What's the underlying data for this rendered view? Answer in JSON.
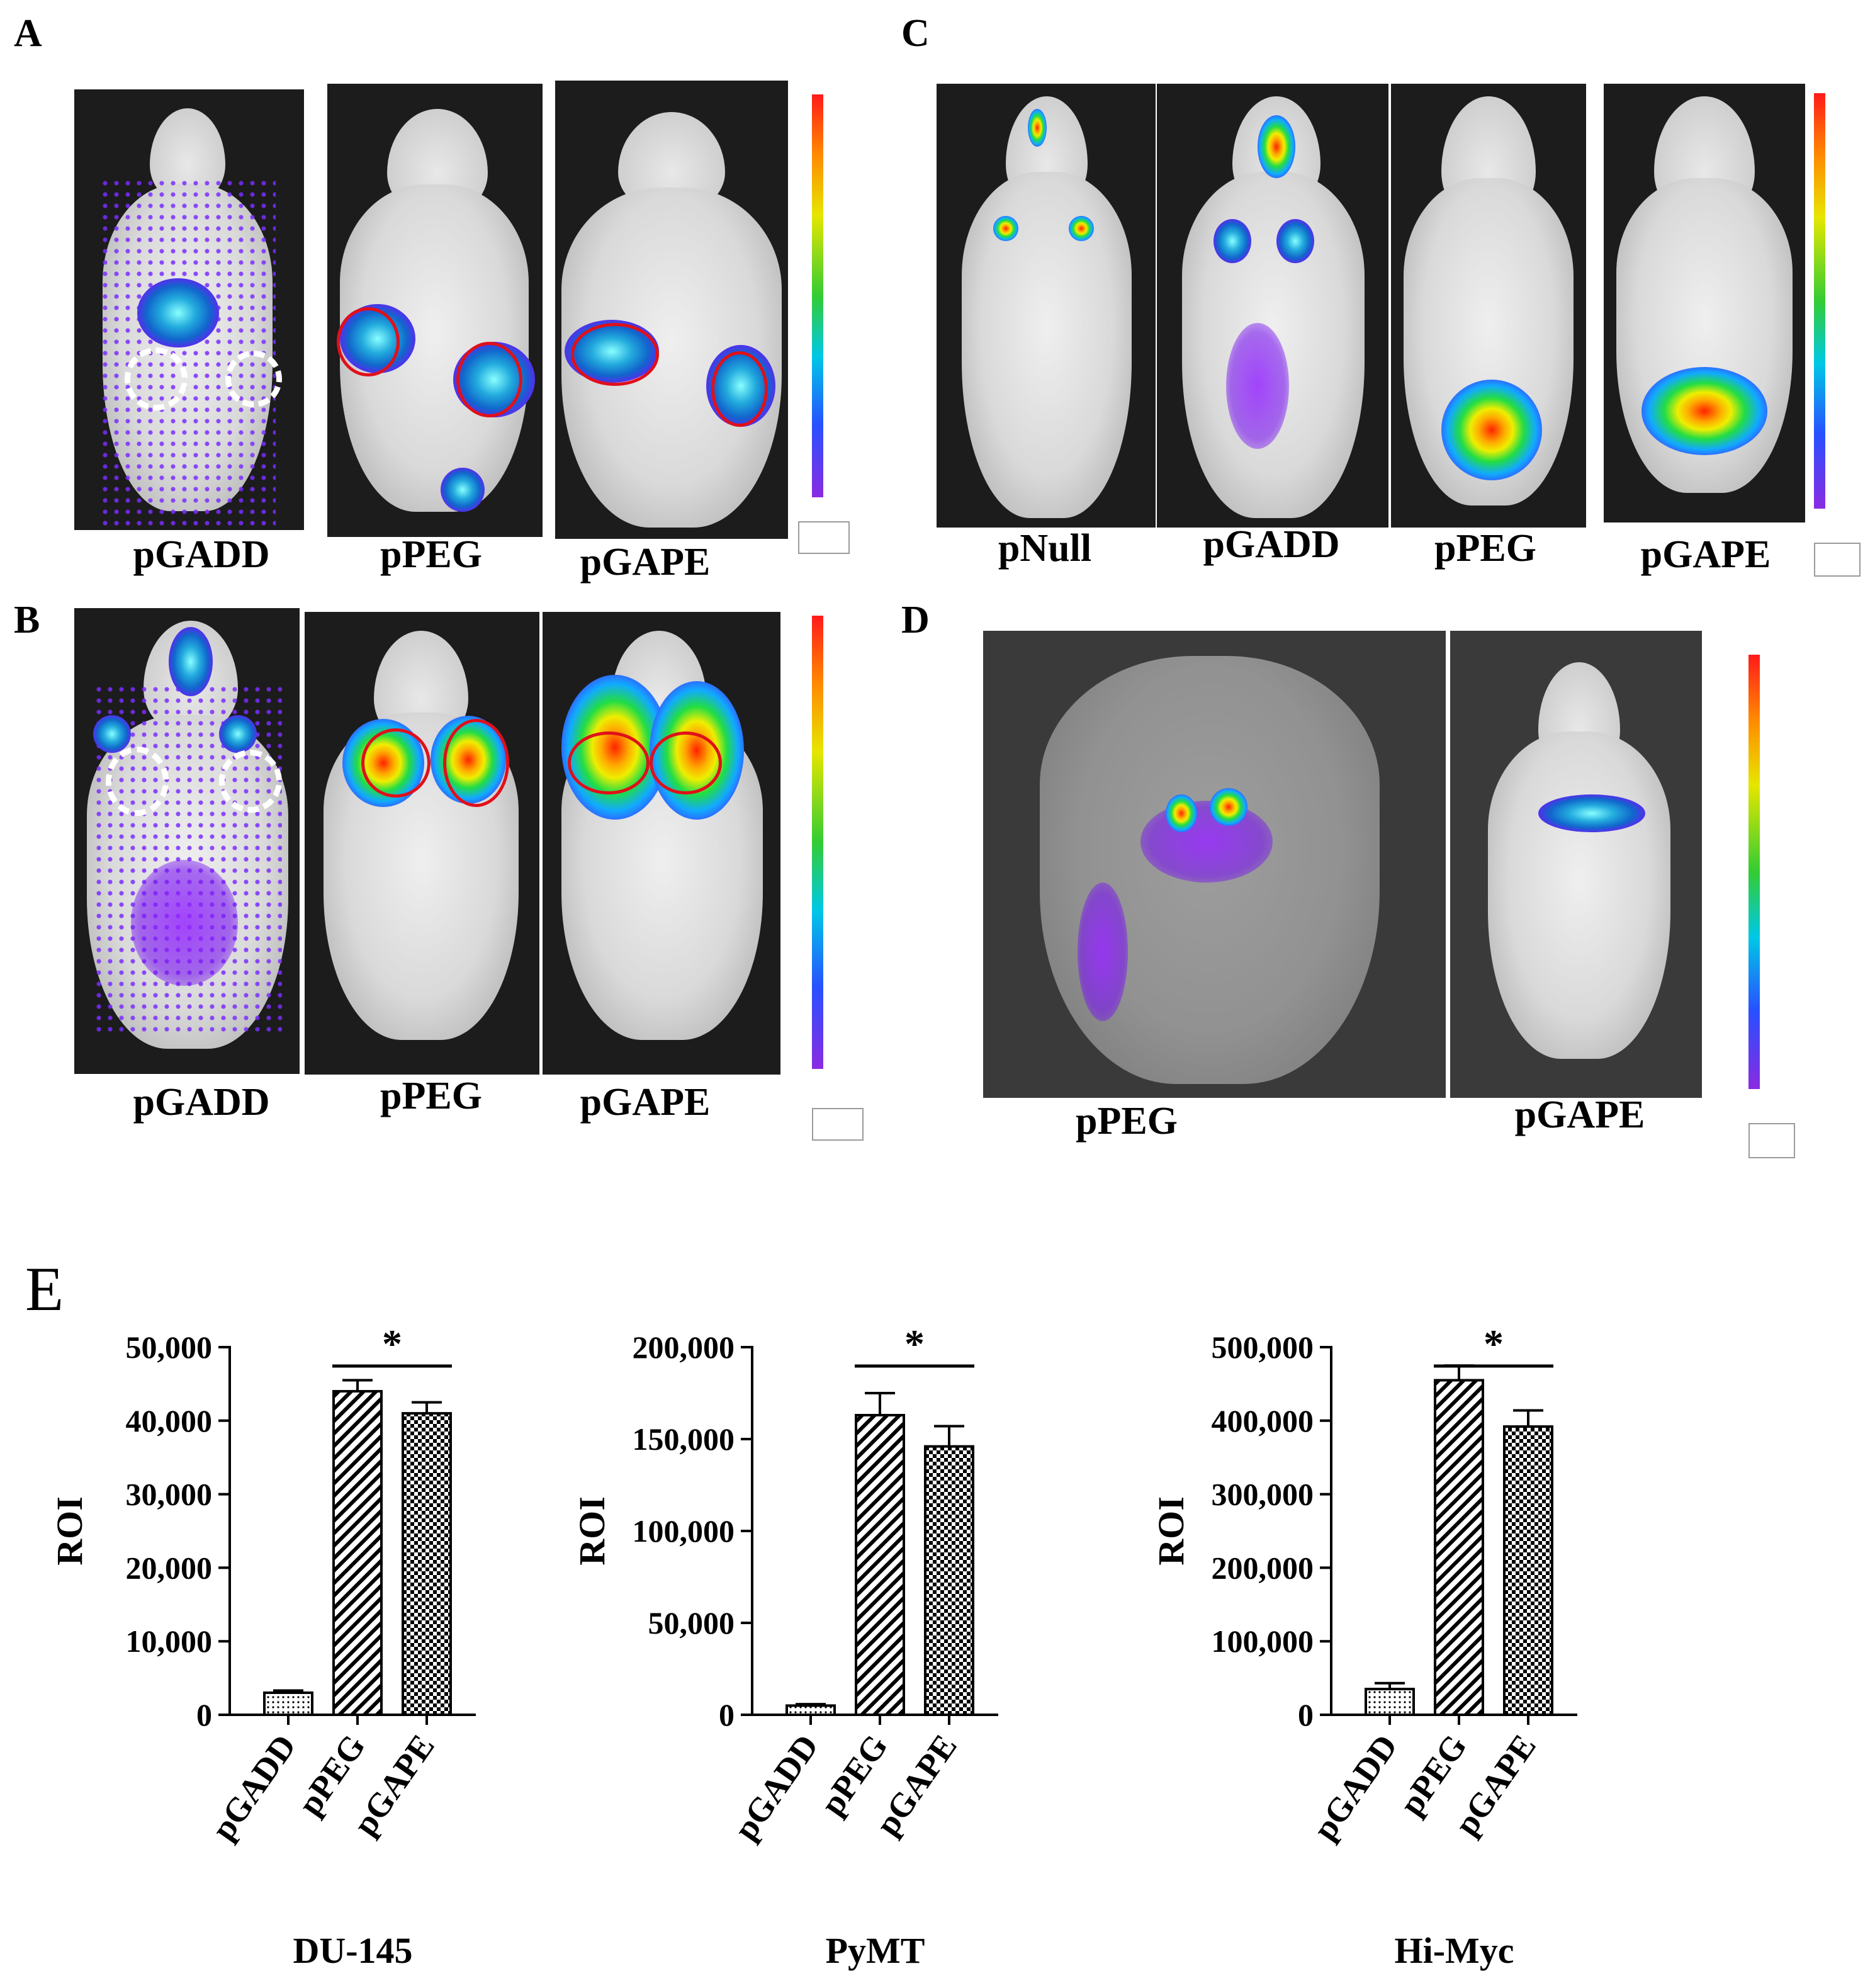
{
  "panels": {
    "A": {
      "letter": "A",
      "captions": [
        "pGADD",
        "pPEG",
        "pGAPE"
      ]
    },
    "B": {
      "letter": "B",
      "captions": [
        "pGADD",
        "pPEG",
        "pGAPE"
      ]
    },
    "C": {
      "letter": "C",
      "captions": [
        "pNull",
        "pGADD",
        "pPEG",
        "pGAPE"
      ]
    },
    "D": {
      "letter": "D",
      "captions": [
        "pPEG",
        "pGAPE"
      ]
    },
    "E": {
      "letter": "E"
    }
  },
  "colors": {
    "bar_fill": "#ffffff",
    "bar_stroke": "#000000"
  },
  "chart_data": [
    {
      "type": "bar",
      "title": "",
      "xlabel": "DU-145",
      "ylabel": "ROI",
      "categories": [
        "pGADD",
        "pPEG",
        "pGAPE"
      ],
      "values": [
        3000,
        44000,
        41000
      ],
      "errors": [
        300,
        1500,
        1500
      ],
      "patterns": [
        "dots",
        "diagonal",
        "checker"
      ],
      "ylim": [
        0,
        50000
      ],
      "yticks": [
        0,
        10000,
        20000,
        30000,
        40000,
        50000
      ],
      "ytick_labels": [
        "0",
        "10,000",
        "20,000",
        "30,000",
        "40,000",
        "50,000"
      ],
      "significance": {
        "from": "pPEG",
        "to": "pGAPE",
        "label": "*"
      },
      "grid": false
    },
    {
      "type": "bar",
      "title": "",
      "xlabel": "PyMT",
      "ylabel": "ROI",
      "categories": [
        "pGADD",
        "pPEG",
        "pGAPE"
      ],
      "values": [
        5000,
        163000,
        146000
      ],
      "errors": [
        800,
        12000,
        11000
      ],
      "patterns": [
        "dots",
        "diagonal",
        "checker"
      ],
      "ylim": [
        0,
        200000
      ],
      "yticks": [
        0,
        50000,
        100000,
        150000,
        200000
      ],
      "ytick_labels": [
        "0",
        "50,000",
        "100,000",
        "150,000",
        "200,000"
      ],
      "significance": {
        "from": "pPEG",
        "to": "pGAPE",
        "label": "*"
      },
      "grid": false
    },
    {
      "type": "bar",
      "title": "",
      "xlabel": "Hi-Myc",
      "ylabel": "ROI",
      "categories": [
        "pGADD",
        "pPEG",
        "pGAPE"
      ],
      "values": [
        35000,
        455000,
        392000
      ],
      "errors": [
        8000,
        20000,
        22000
      ],
      "patterns": [
        "dots",
        "diagonal",
        "checker"
      ],
      "ylim": [
        0,
        500000
      ],
      "yticks": [
        0,
        100000,
        200000,
        300000,
        400000,
        500000
      ],
      "ytick_labels": [
        "0",
        "100,000",
        "200,000",
        "300,000",
        "400,000",
        "500,000"
      ],
      "significance": {
        "from": "pPEG",
        "to": "pGAPE",
        "label": "*"
      },
      "grid": false
    }
  ]
}
